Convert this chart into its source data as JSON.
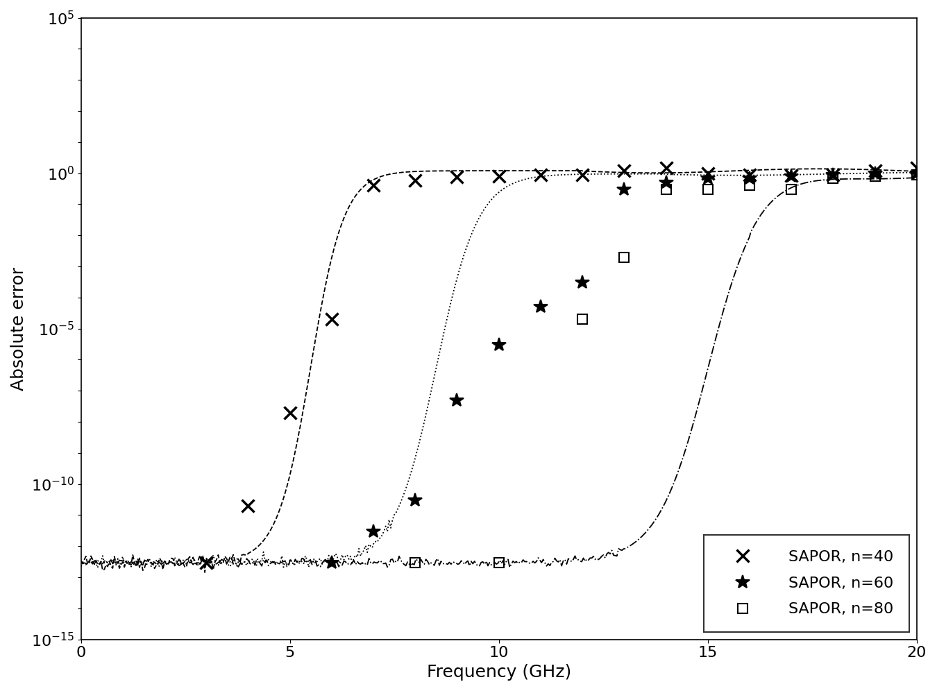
{
  "title": "",
  "xlabel": "Frequency (GHz)",
  "ylabel": "Absolute error",
  "xlim": [
    0,
    20
  ],
  "ylim_log": [
    -15,
    5
  ],
  "background_color": "#ffffff",
  "line_color": "#000000",
  "series": [
    {
      "label": "SAPOR, n=40",
      "marker": "x",
      "linestyle": "--",
      "markersize": 13,
      "markeredgewidth": 2.5,
      "x_marked": [
        3.0,
        4.0,
        5.0,
        6.0,
        7.0,
        8.0,
        9.0,
        10.0,
        11.0,
        12.0,
        13.0,
        14.0,
        15.0,
        16.0,
        17.0,
        18.0,
        19.0,
        20.0
      ],
      "y_marked": [
        3e-13,
        2e-11,
        2e-08,
        2e-05,
        0.4,
        0.6,
        0.75,
        0.8,
        0.9,
        0.9,
        1.2,
        1.5,
        1.0,
        0.9,
        0.85,
        0.9,
        1.2,
        1.5
      ]
    },
    {
      "label": "SAPOR, n=60",
      "marker": "*",
      "linestyle": ":",
      "markersize": 15,
      "markeredgewidth": 1.5,
      "x_marked": [
        6.0,
        7.0,
        8.0,
        9.0,
        10.0,
        11.0,
        12.0,
        13.0,
        14.0,
        15.0,
        16.0,
        17.0,
        18.0,
        19.0,
        20.0
      ],
      "y_marked": [
        3e-13,
        3e-12,
        3e-11,
        5e-08,
        3e-06,
        5e-05,
        0.0003,
        0.3,
        0.5,
        0.7,
        0.7,
        0.8,
        0.9,
        1.0,
        1.0
      ]
    },
    {
      "label": "SAPOR, n=80",
      "marker": "s",
      "linestyle": "-.",
      "markersize": 10,
      "markeredgewidth": 1.5,
      "x_marked": [
        8.0,
        10.0,
        12.0,
        13.0,
        14.0,
        15.0,
        16.0,
        17.0,
        18.0,
        19.0,
        20.0
      ],
      "y_marked": [
        3e-13,
        3e-13,
        2e-05,
        0.002,
        0.3,
        0.3,
        0.4,
        0.3,
        0.7,
        0.8,
        0.9
      ]
    }
  ],
  "legend_loc": "lower right",
  "fontsize": 18,
  "tick_fontsize": 16
}
